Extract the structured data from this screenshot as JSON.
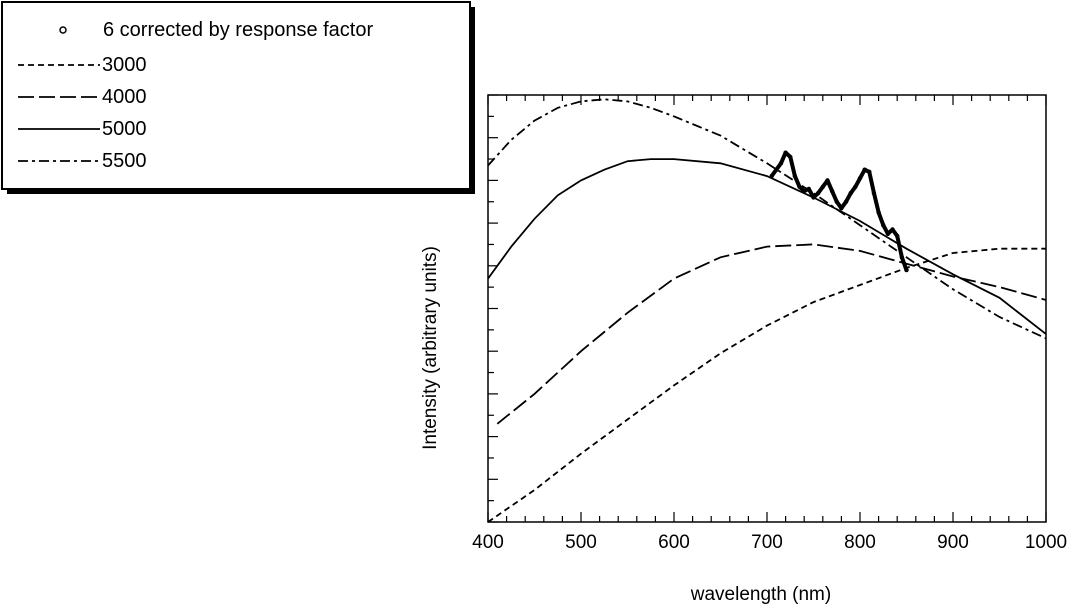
{
  "chart_data": {
    "type": "line",
    "title": "",
    "xlabel": "wavelength (nm)",
    "ylabel": "Intensity (arbitrary units)",
    "xlim": [
      400,
      1000
    ],
    "ylim": [
      0,
      10
    ],
    "x_ticks": [
      400,
      500,
      600,
      700,
      800,
      900,
      1000
    ],
    "x_tick_labels": [
      "400",
      "500",
      "600",
      "700",
      "800",
      "900",
      "1000"
    ],
    "y_tick_labels_shown": false,
    "grid": false,
    "legend_position": "top-left",
    "series": [
      {
        "name": "6 corrected by response factor",
        "style": "marker",
        "x": [
          705,
          710,
          715,
          720,
          725,
          730,
          735,
          740,
          745,
          750,
          755,
          760,
          765,
          770,
          775,
          780,
          785,
          790,
          795,
          800,
          805,
          810,
          815,
          820,
          825,
          830,
          835,
          840,
          845,
          850
        ],
        "y": [
          8.1,
          8.25,
          8.4,
          8.65,
          8.55,
          8.1,
          7.85,
          7.75,
          7.8,
          7.6,
          7.7,
          7.85,
          8.0,
          7.75,
          7.5,
          7.35,
          7.5,
          7.7,
          7.85,
          8.05,
          8.25,
          8.2,
          7.7,
          7.25,
          6.95,
          6.75,
          6.85,
          6.7,
          6.2,
          5.9
        ]
      },
      {
        "name": "3000",
        "style": "dash",
        "x": [
          400,
          450,
          500,
          550,
          600,
          650,
          700,
          750,
          800,
          850,
          900,
          950,
          1000
        ],
        "y": [
          0.0,
          0.75,
          1.6,
          2.4,
          3.2,
          3.95,
          4.6,
          5.15,
          5.55,
          5.95,
          6.3,
          6.4,
          6.4
        ]
      },
      {
        "name": "4000",
        "style": "longdash",
        "x": [
          410,
          450,
          500,
          550,
          600,
          650,
          700,
          750,
          800,
          850,
          900,
          950,
          1000
        ],
        "y": [
          2.3,
          3.0,
          4.0,
          4.9,
          5.7,
          6.2,
          6.45,
          6.5,
          6.35,
          6.05,
          5.75,
          5.5,
          5.2
        ]
      },
      {
        "name": "5000",
        "style": "solid",
        "x": [
          400,
          425,
          450,
          475,
          500,
          525,
          550,
          575,
          600,
          650,
          700,
          750,
          800,
          850,
          900,
          950,
          1000
        ],
        "y": [
          5.7,
          6.45,
          7.1,
          7.65,
          8.0,
          8.25,
          8.45,
          8.5,
          8.5,
          8.4,
          8.1,
          7.6,
          7.05,
          6.4,
          5.8,
          5.25,
          4.4
        ]
      },
      {
        "name": "5500",
        "style": "dashdot",
        "x": [
          400,
          425,
          450,
          475,
          500,
          525,
          550,
          575,
          600,
          650,
          700,
          750,
          800,
          850,
          900,
          950,
          1000
        ],
        "y": [
          8.35,
          8.95,
          9.4,
          9.7,
          9.85,
          9.9,
          9.85,
          9.7,
          9.5,
          9.05,
          8.4,
          7.7,
          6.95,
          6.2,
          5.45,
          4.8,
          4.3
        ]
      }
    ]
  }
}
